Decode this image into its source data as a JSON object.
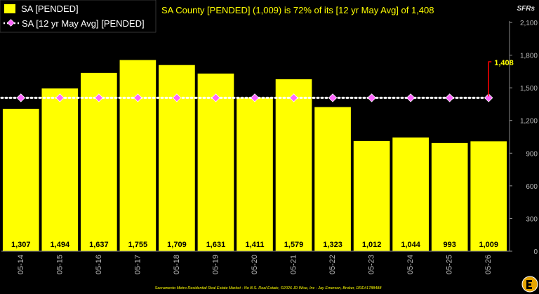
{
  "chart_data": {
    "type": "bar",
    "title": "SA County [PENDED] (1,009) is 72% of its [12 yr May Avg] of 1,408",
    "ylabel": "SFRs",
    "categories": [
      "05-14",
      "05-15",
      "05-16",
      "05-17",
      "05-18",
      "05-19",
      "05-20",
      "05-21",
      "05-22",
      "05-23",
      "05-24",
      "05-25",
      "05-26"
    ],
    "series": [
      {
        "name": "SA [PENDED]",
        "type": "bar",
        "color": "#FFFF00",
        "values": [
          1307,
          1494,
          1637,
          1755,
          1709,
          1631,
          1411,
          1579,
          1323,
          1012,
          1044,
          993,
          1009
        ],
        "labels": [
          "1,307",
          "1,494",
          "1,637",
          "1,755",
          "1,709",
          "1,631",
          "1,411",
          "1,579",
          "1,323",
          "1,012",
          "1,044",
          "993",
          "1,009"
        ]
      },
      {
        "name": "SA [12 yr May Avg] [PENDED]",
        "type": "line",
        "color": "#FF66FF",
        "values": [
          1408,
          1408,
          1408,
          1408,
          1408,
          1408,
          1408,
          1408,
          1408,
          1408,
          1408,
          1408,
          1408
        ]
      }
    ],
    "ylim": [
      0,
      2100
    ],
    "yticks": [
      0,
      300,
      600,
      900,
      1200,
      1500,
      1800,
      2100
    ],
    "ytick_labels": [
      "0",
      "300",
      "600",
      "900",
      "1,200",
      "1,500",
      "1,800",
      "2,100"
    ],
    "grid": false,
    "legend": "top-left",
    "annotation": {
      "text": "1,408",
      "category": "05-26",
      "value": 1408,
      "color": "#FFFF00",
      "line_color": "#FF0000"
    }
  },
  "footer": "Sacramento Metro Residential Real Estate Market - No B.S. Real Estate, ©2026 JD Wise, Inc - Jay Emerson, Broker, DRE#1788488",
  "colors": {
    "background": "#000000",
    "title": "#FFFF00",
    "axis": "#BBBBBB"
  }
}
